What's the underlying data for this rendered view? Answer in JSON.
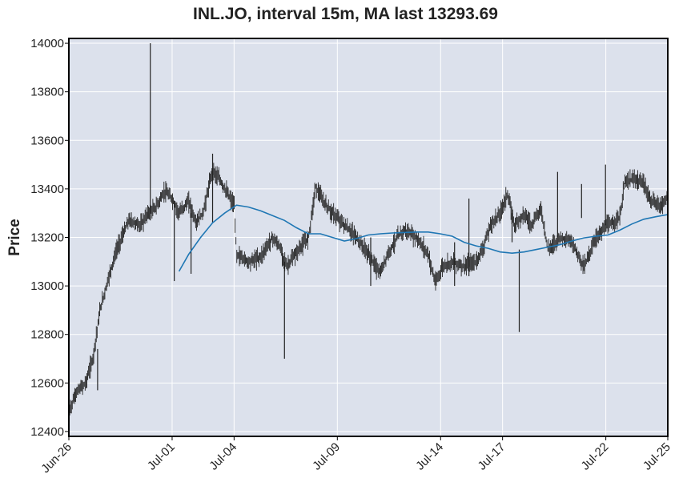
{
  "chart_data": {
    "type": "candlestick",
    "title": "INL.JO, interval 15m, MA last 13293.69",
    "xlabel": "",
    "ylabel": "Price",
    "ylim": [
      12380,
      14020
    ],
    "yticks": [
      12400,
      12600,
      12800,
      13000,
      13200,
      13400,
      13600,
      13800,
      14000
    ],
    "xticks": [
      "Jun-26",
      "Jul-01",
      "Jul-04",
      "Jul-09",
      "Jul-14",
      "Jul-17",
      "Jul-22",
      "Jul-25"
    ],
    "grid": true,
    "colors": {
      "background": "#dce1ec",
      "grid": "#ffffff",
      "candles": "#222222",
      "ma": "#1f77b4",
      "frame": "#000000"
    },
    "series": [
      {
        "name": "Price",
        "kind": "ohlc-15m",
        "points": [
          {
            "x": 0,
            "y": 12480
          },
          {
            "x": 0.3,
            "y": 12560
          },
          {
            "x": 0.7,
            "y": 12600
          },
          {
            "x": 1.0,
            "y": 12700
          },
          {
            "x": 1.3,
            "y": 12900
          },
          {
            "x": 1.7,
            "y": 13050
          },
          {
            "x": 2.0,
            "y": 13150
          },
          {
            "x": 2.5,
            "y": 13270
          },
          {
            "x": 3.0,
            "y": 13250
          },
          {
            "x": 3.3,
            "y": 13300
          },
          {
            "x": 3.6,
            "y": 13320
          },
          {
            "x": 4.0,
            "y": 13390
          },
          {
            "x": 4.3,
            "y": 13360
          },
          {
            "x": 4.6,
            "y": 13300
          },
          {
            "x": 5.0,
            "y": 13350
          },
          {
            "x": 5.3,
            "y": 13260
          },
          {
            "x": 5.6,
            "y": 13300
          },
          {
            "x": 6.0,
            "y": 13480
          },
          {
            "x": 6.4,
            "y": 13420
          },
          {
            "x": 6.9,
            "y": 13330
          },
          {
            "x": 7.0,
            "y": 13130
          },
          {
            "x": 7.5,
            "y": 13100
          },
          {
            "x": 8.0,
            "y": 13120
          },
          {
            "x": 8.5,
            "y": 13200
          },
          {
            "x": 8.8,
            "y": 13160
          },
          {
            "x": 9.1,
            "y": 13080
          },
          {
            "x": 9.6,
            "y": 13150
          },
          {
            "x": 10.0,
            "y": 13200
          },
          {
            "x": 10.3,
            "y": 13410
          },
          {
            "x": 10.6,
            "y": 13350
          },
          {
            "x": 11.0,
            "y": 13300
          },
          {
            "x": 11.5,
            "y": 13250
          },
          {
            "x": 12.0,
            "y": 13200
          },
          {
            "x": 12.5,
            "y": 13130
          },
          {
            "x": 13.0,
            "y": 13050
          },
          {
            "x": 13.3,
            "y": 13130
          },
          {
            "x": 13.7,
            "y": 13200
          },
          {
            "x": 14.0,
            "y": 13230
          },
          {
            "x": 14.5,
            "y": 13200
          },
          {
            "x": 15.0,
            "y": 13130
          },
          {
            "x": 15.3,
            "y": 13010
          },
          {
            "x": 15.6,
            "y": 13080
          },
          {
            "x": 16.0,
            "y": 13100
          },
          {
            "x": 16.5,
            "y": 13080
          },
          {
            "x": 17.0,
            "y": 13100
          },
          {
            "x": 17.3,
            "y": 13160
          },
          {
            "x": 17.6,
            "y": 13250
          },
          {
            "x": 18.0,
            "y": 13300
          },
          {
            "x": 18.3,
            "y": 13380
          },
          {
            "x": 18.6,
            "y": 13250
          },
          {
            "x": 19.0,
            "y": 13300
          },
          {
            "x": 19.3,
            "y": 13250
          },
          {
            "x": 19.7,
            "y": 13320
          },
          {
            "x": 20.0,
            "y": 13150
          },
          {
            "x": 20.5,
            "y": 13200
          },
          {
            "x": 21.0,
            "y": 13180
          },
          {
            "x": 21.5,
            "y": 13080
          },
          {
            "x": 21.8,
            "y": 13150
          },
          {
            "x": 22.0,
            "y": 13200
          },
          {
            "x": 22.5,
            "y": 13250
          },
          {
            "x": 23.0,
            "y": 13280
          },
          {
            "x": 23.2,
            "y": 13430
          },
          {
            "x": 23.6,
            "y": 13440
          },
          {
            "x": 24.0,
            "y": 13420
          },
          {
            "x": 24.3,
            "y": 13350
          },
          {
            "x": 24.7,
            "y": 13330
          },
          {
            "x": 25.0,
            "y": 13370
          }
        ],
        "spikes": [
          {
            "x": 3.4,
            "low": 13270,
            "high": 14000
          },
          {
            "x": 6.0,
            "low": 13260,
            "high": 13545
          },
          {
            "x": 5.1,
            "low": 13050,
            "high": 13300
          },
          {
            "x": 4.4,
            "low": 13020,
            "high": 13350
          },
          {
            "x": 9.0,
            "low": 12700,
            "high": 13100
          },
          {
            "x": 12.6,
            "low": 13000,
            "high": 13200
          },
          {
            "x": 16.7,
            "low": 13040,
            "high": 13360
          },
          {
            "x": 16.1,
            "low": 13000,
            "high": 13180
          },
          {
            "x": 18.5,
            "low": 13180,
            "high": 13300
          },
          {
            "x": 18.8,
            "low": 12810,
            "high": 13150
          },
          {
            "x": 20.4,
            "low": 13200,
            "high": 13470
          },
          {
            "x": 21.4,
            "low": 13280,
            "high": 13420
          },
          {
            "x": 22.4,
            "low": 13250,
            "high": 13500
          },
          {
            "x": 1.2,
            "low": 12570,
            "high": 12740
          }
        ]
      },
      {
        "name": "MA",
        "kind": "line",
        "points": [
          {
            "x": 4.6,
            "y": 13060
          },
          {
            "x": 5.0,
            "y": 13130
          },
          {
            "x": 5.5,
            "y": 13200
          },
          {
            "x": 6.0,
            "y": 13260
          },
          {
            "x": 6.5,
            "y": 13300
          },
          {
            "x": 7.0,
            "y": 13333
          },
          {
            "x": 7.5,
            "y": 13325
          },
          {
            "x": 8.0,
            "y": 13310
          },
          {
            "x": 8.5,
            "y": 13290
          },
          {
            "x": 9.0,
            "y": 13270
          },
          {
            "x": 9.5,
            "y": 13240
          },
          {
            "x": 10.0,
            "y": 13215
          },
          {
            "x": 10.5,
            "y": 13215
          },
          {
            "x": 11.0,
            "y": 13200
          },
          {
            "x": 11.5,
            "y": 13185
          },
          {
            "x": 12.0,
            "y": 13195
          },
          {
            "x": 12.5,
            "y": 13210
          },
          {
            "x": 13.0,
            "y": 13215
          },
          {
            "x": 13.5,
            "y": 13218
          },
          {
            "x": 14.0,
            "y": 13220
          },
          {
            "x": 14.5,
            "y": 13222
          },
          {
            "x": 15.0,
            "y": 13222
          },
          {
            "x": 15.5,
            "y": 13215
          },
          {
            "x": 16.0,
            "y": 13205
          },
          {
            "x": 16.5,
            "y": 13180
          },
          {
            "x": 17.0,
            "y": 13165
          },
          {
            "x": 17.5,
            "y": 13155
          },
          {
            "x": 18.0,
            "y": 13140
          },
          {
            "x": 18.5,
            "y": 13135
          },
          {
            "x": 19.0,
            "y": 13140
          },
          {
            "x": 19.5,
            "y": 13150
          },
          {
            "x": 20.0,
            "y": 13160
          },
          {
            "x": 20.5,
            "y": 13170
          },
          {
            "x": 21.0,
            "y": 13185
          },
          {
            "x": 21.5,
            "y": 13198
          },
          {
            "x": 22.0,
            "y": 13205
          },
          {
            "x": 22.5,
            "y": 13210
          },
          {
            "x": 23.0,
            "y": 13230
          },
          {
            "x": 23.5,
            "y": 13255
          },
          {
            "x": 24.0,
            "y": 13275
          },
          {
            "x": 24.5,
            "y": 13285
          },
          {
            "x": 25.0,
            "y": 13294
          }
        ]
      }
    ]
  }
}
